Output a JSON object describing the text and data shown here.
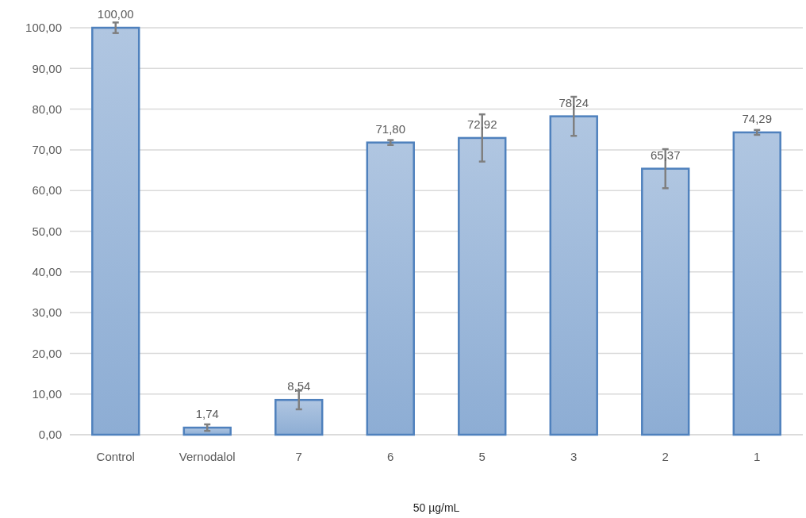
{
  "chart_data": {
    "type": "bar",
    "xlabel": "50 µg/mL",
    "categories": [
      "Control",
      "Vernodalol",
      "7",
      "6",
      "5",
      "3",
      "2",
      "1"
    ],
    "values": [
      100,
      1.74,
      8.54,
      71.8,
      72.92,
      78.24,
      65.37,
      74.29
    ],
    "value_labels": [
      "100,00",
      "1,74",
      "8,54",
      "71,80",
      "72,92",
      "78,24",
      "65,37",
      "74,29"
    ],
    "errors": [
      1.3,
      0.8,
      2.3,
      0.6,
      5.8,
      4.8,
      4.8,
      0.6
    ],
    "color": "#4f81bd",
    "ylim": [
      0,
      100
    ],
    "yticks": [
      {
        "value": 0,
        "label": "0,00"
      },
      {
        "value": 10,
        "label": "10,00"
      },
      {
        "value": 20,
        "label": "20,00"
      },
      {
        "value": 30,
        "label": "30,00"
      },
      {
        "value": 40,
        "label": "40,00"
      },
      {
        "value": 50,
        "label": "50,00"
      },
      {
        "value": 60,
        "label": "60,00"
      },
      {
        "value": 70,
        "label": "70,00"
      },
      {
        "value": 80,
        "label": "80,00"
      },
      {
        "value": 90,
        "label": "90,00"
      },
      {
        "value": 100,
        "label": "100,00"
      }
    ],
    "grid": "y"
  }
}
